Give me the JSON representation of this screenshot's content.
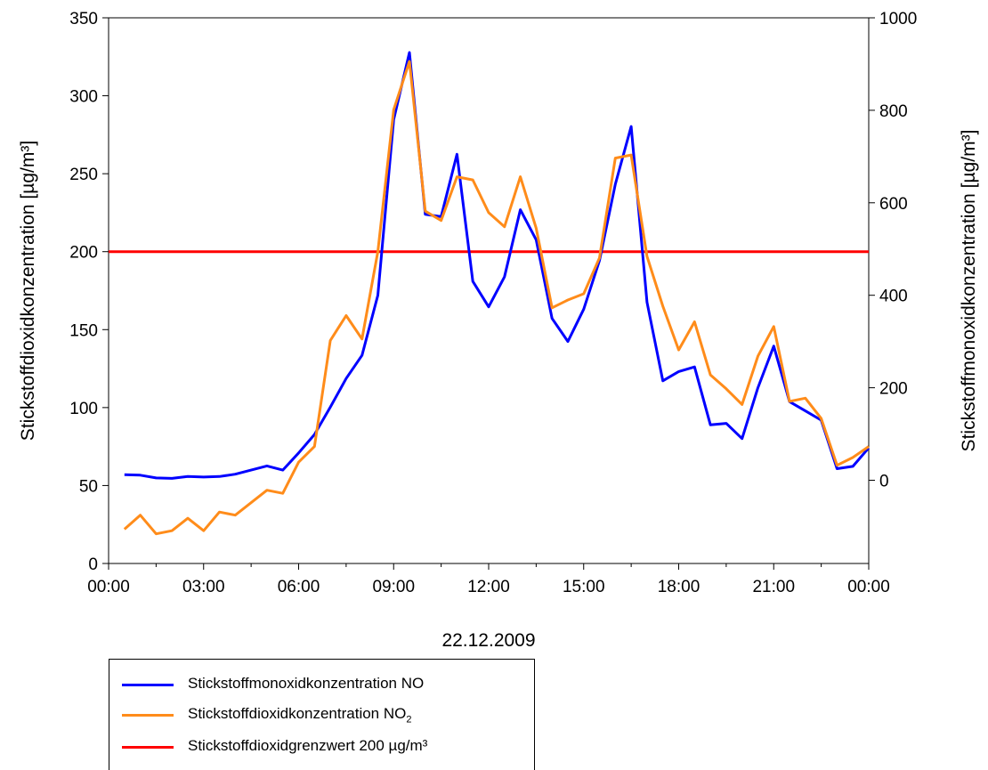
{
  "chart_data": {
    "type": "line",
    "xlabel": "22.12.2009",
    "ylabel_left": "Stickstoffdioxidkonzentration [µg/m³]",
    "ylabel_right": "Stickstoffmonoxidkonzentration [µg/m³]",
    "y_left_lim": [
      0,
      350
    ],
    "y_left_ticks": [
      "0",
      "50",
      "100",
      "150",
      "200",
      "250",
      "300",
      "350"
    ],
    "y_right_lim": [
      -180,
      1000
    ],
    "y_right_ticks": [
      "0",
      "200",
      "400",
      "600",
      "800",
      "1000"
    ],
    "x_ticks": [
      "00:00",
      "03:00",
      "06:00",
      "09:00",
      "12:00",
      "15:00",
      "18:00",
      "21:00",
      "00:00"
    ],
    "grid": false,
    "legend_position": "bottom-left, below chart",
    "series": [
      {
        "name": "Stickstoffmonoxidkonzentration NO",
        "color": "#0000ff",
        "axis": "right",
        "x_hours": [
          0.5,
          1,
          1.5,
          2,
          2.5,
          3,
          3.5,
          4,
          4.5,
          5,
          5.5,
          6,
          6.5,
          7,
          7.5,
          8,
          8.5,
          9,
          9.5,
          10,
          10.5,
          11,
          11.5,
          12,
          12.5,
          13,
          13.5,
          14,
          14.5,
          15,
          15.5,
          16,
          16.5,
          17,
          17.5,
          18,
          18.5,
          19,
          19.5,
          20,
          20.5,
          21,
          21.5,
          22,
          22.5,
          23,
          23.5,
          24
        ],
        "values": [
          12,
          11,
          5,
          4,
          8,
          7,
          8,
          13,
          22,
          31,
          22,
          59,
          99,
          158,
          220,
          270,
          400,
          780,
          925,
          575,
          570,
          705,
          430,
          375,
          440,
          585,
          520,
          350,
          300,
          370,
          475,
          640,
          765,
          385,
          215,
          235,
          245,
          120,
          123,
          90,
          200,
          290,
          170,
          150,
          130,
          25,
          30,
          70
        ]
      },
      {
        "name": "Stickstoffdioxidkonzentration NO",
        "name_subscript": "2",
        "color": "#ff8c1a",
        "axis": "left",
        "x_hours": [
          0.5,
          1,
          1.5,
          2,
          2.5,
          3,
          3.5,
          4,
          4.5,
          5,
          5.5,
          6,
          6.5,
          7,
          7.5,
          8,
          8.5,
          9,
          9.5,
          10,
          10.5,
          11,
          11.5,
          12,
          12.5,
          13,
          13.5,
          14,
          14.5,
          15,
          15.5,
          16,
          16.5,
          17,
          17.5,
          18,
          18.5,
          19,
          19.5,
          20,
          20.5,
          21,
          21.5,
          22,
          22.5,
          23,
          23.5,
          24
        ],
        "values": [
          22,
          31,
          19,
          21,
          29,
          21,
          33,
          31,
          39,
          47,
          45,
          65,
          75,
          143,
          159,
          144,
          200,
          291,
          322,
          226,
          220,
          248,
          246,
          225,
          216,
          248,
          215,
          164,
          169,
          173,
          196,
          260,
          262,
          197,
          165,
          137,
          155,
          121,
          112,
          102,
          133,
          152,
          104,
          106,
          93,
          63,
          68,
          75
        ]
      },
      {
        "name": "Stickstoffdioxidgrenzwert 200 µg/m³",
        "color": "#ff0000",
        "axis": "left",
        "value": 200
      }
    ]
  }
}
